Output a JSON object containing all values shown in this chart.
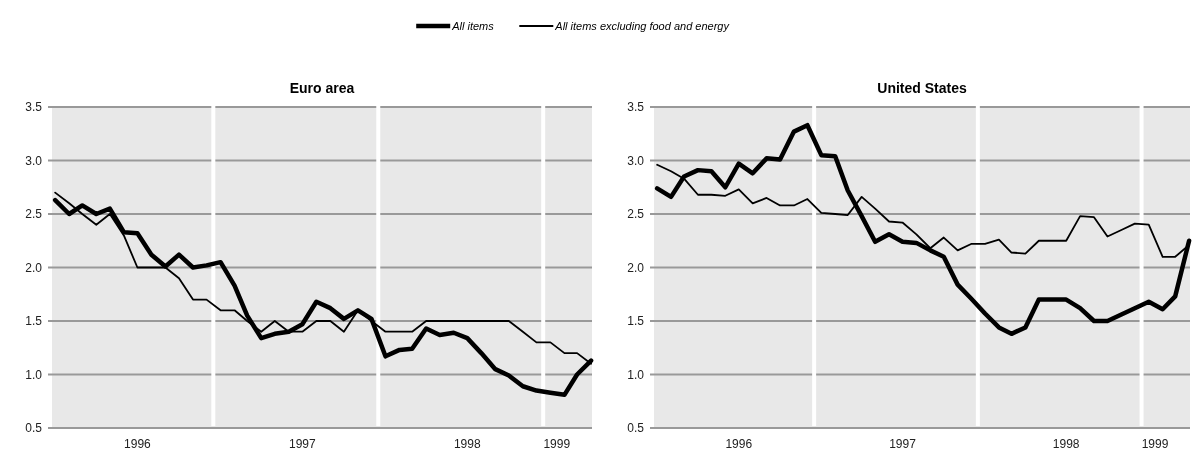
{
  "chart_data": [
    {
      "type": "line",
      "title": "Euro area",
      "x": [
        "1996-01",
        "1996-02",
        "1996-03",
        "1996-04",
        "1996-05",
        "1996-06",
        "1996-07",
        "1996-08",
        "1996-09",
        "1996-10",
        "1996-11",
        "1996-12",
        "1997-01",
        "1997-02",
        "1997-03",
        "1997-04",
        "1997-05",
        "1997-06",
        "1997-07",
        "1997-08",
        "1997-09",
        "1997-10",
        "1997-11",
        "1997-12",
        "1998-01",
        "1998-02",
        "1998-03",
        "1998-04",
        "1998-05",
        "1998-06",
        "1998-07",
        "1998-08",
        "1998-09",
        "1998-10",
        "1998-11",
        "1998-12",
        "1999-01",
        "1999-02",
        "1999-03",
        "1999-04"
      ],
      "series": [
        {
          "name": "All items",
          "color": "#000000",
          "values": [
            2.63,
            2.5,
            2.58,
            2.5,
            2.55,
            2.33,
            2.32,
            2.12,
            2.01,
            2.12,
            2.0,
            2.02,
            2.05,
            1.83,
            1.55,
            1.34,
            1.38,
            1.4,
            1.47,
            1.68,
            1.62,
            1.52,
            1.6,
            1.52,
            1.17,
            1.23,
            1.24,
            1.43,
            1.37,
            1.39,
            1.34,
            1.2,
            1.05,
            0.99,
            0.89,
            0.85,
            0.83,
            0.81,
            1.0,
            1.13
          ]
        },
        {
          "name": "All items excluding food and energy",
          "color": "#000000",
          "values": [
            2.7,
            2.6,
            2.5,
            2.4,
            2.5,
            2.3,
            2.0,
            2.0,
            2.0,
            1.9,
            1.7,
            1.7,
            1.6,
            1.6,
            1.5,
            1.4,
            1.5,
            1.4,
            1.4,
            1.5,
            1.5,
            1.4,
            1.6,
            1.5,
            1.4,
            1.4,
            1.4,
            1.5,
            1.5,
            1.5,
            1.5,
            1.5,
            1.5,
            1.5,
            1.4,
            1.3,
            1.3,
            1.2,
            1.2,
            1.1
          ]
        }
      ],
      "xlim": [
        "1995-12-25",
        "1999-04-03"
      ],
      "xticks": [
        {
          "value": "1996-07-01",
          "label": "1996"
        },
        {
          "value": "1997-07-01",
          "label": "1997"
        },
        {
          "value": "1998-07-01",
          "label": "1998"
        },
        {
          "value": "1999-01-15",
          "label": "1999"
        }
      ],
      "ylim": [
        0.5,
        3.5
      ],
      "yticks": [
        0.5,
        {
          "value": 1,
          "label": "1.0"
        },
        1.5,
        {
          "value": 2,
          "label": "2.0"
        },
        2.5,
        {
          "value": 3,
          "label": "3.0"
        },
        3.5
      ],
      "ref_lines": [
        {
          "axis": "x",
          "value": "1996-12-16",
          "color": "#ffffff"
        },
        {
          "axis": "x",
          "value": "1997-12-16",
          "color": "#ffffff"
        },
        {
          "axis": "x",
          "value": "1998-12-16",
          "color": "#ffffff"
        }
      ],
      "grid": "y",
      "legend": "top",
      "marker": "none",
      "line_style": "solid"
    },
    {
      "type": "line",
      "title": "United States",
      "x": [
        "1996-01",
        "1996-02",
        "1996-03",
        "1996-04",
        "1996-05",
        "1996-06",
        "1996-07",
        "1996-08",
        "1996-09",
        "1996-10",
        "1996-11",
        "1996-12",
        "1997-01",
        "1997-02",
        "1997-03",
        "1997-04",
        "1997-05",
        "1997-06",
        "1997-07",
        "1997-08",
        "1997-09",
        "1997-10",
        "1997-11",
        "1997-12",
        "1998-01",
        "1998-02",
        "1998-03",
        "1998-04",
        "1998-05",
        "1998-06",
        "1998-07",
        "1998-08",
        "1998-09",
        "1998-10",
        "1998-11",
        "1998-12",
        "1999-01",
        "1999-02",
        "1999-03",
        "1999-04"
      ],
      "series": [
        {
          "color": "#000000",
          "values": [
            2.74,
            2.66,
            2.85,
            2.91,
            2.9,
            2.75,
            2.97,
            2.88,
            3.02,
            3.01,
            3.27,
            3.33,
            3.05,
            3.04,
            2.72,
            2.48,
            2.24,
            2.31,
            2.24,
            2.23,
            2.16,
            2.1,
            1.84,
            1.71,
            1.57,
            1.44,
            1.38,
            1.44,
            1.7,
            1.7,
            1.7,
            1.62,
            1.5,
            1.5,
            1.56,
            1.62,
            1.68,
            1.61,
            1.73,
            2.25
          ]
        },
        {
          "color": "#000000",
          "values": [
            2.96,
            2.9,
            2.83,
            2.68,
            2.68,
            2.67,
            2.73,
            2.6,
            2.65,
            2.58,
            2.58,
            2.64,
            2.51,
            2.5,
            2.49,
            2.66,
            2.55,
            2.43,
            2.42,
            2.31,
            2.18,
            2.28,
            2.16,
            2.22,
            2.22,
            2.26,
            2.14,
            2.13,
            2.25,
            2.25,
            2.25,
            2.48,
            2.47,
            2.29,
            2.35,
            2.41,
            2.4,
            2.1,
            2.1,
            2.21
          ]
        }
      ],
      "xlim": [
        "1995-12-25",
        "1999-04-03"
      ],
      "xticks": [
        {
          "value": "1996-07-01",
          "label": "1996"
        },
        {
          "value": "1997-07-01",
          "label": "1997"
        },
        {
          "value": "1998-07-01",
          "label": "1998"
        },
        {
          "value": "1999-01-15",
          "label": "1999"
        }
      ],
      "ylim": [
        0.5,
        3.5
      ],
      "yticks": [
        0.5,
        {
          "value": 1,
          "label": "1.0"
        },
        1.5,
        {
          "value": 2,
          "label": "2.0"
        },
        2.5,
        {
          "value": 3,
          "label": "3.0"
        },
        3.5
      ],
      "ref_lines": [
        {
          "axis": "x",
          "value": "1996-12-16",
          "color": "#ffffff"
        },
        {
          "axis": "x",
          "value": "1997-12-16",
          "color": "#ffffff"
        },
        {
          "axis": "x",
          "value": "1998-12-16",
          "color": "#ffffff"
        }
      ],
      "grid": "y",
      "marker": "none",
      "line_style": "solid"
    }
  ]
}
